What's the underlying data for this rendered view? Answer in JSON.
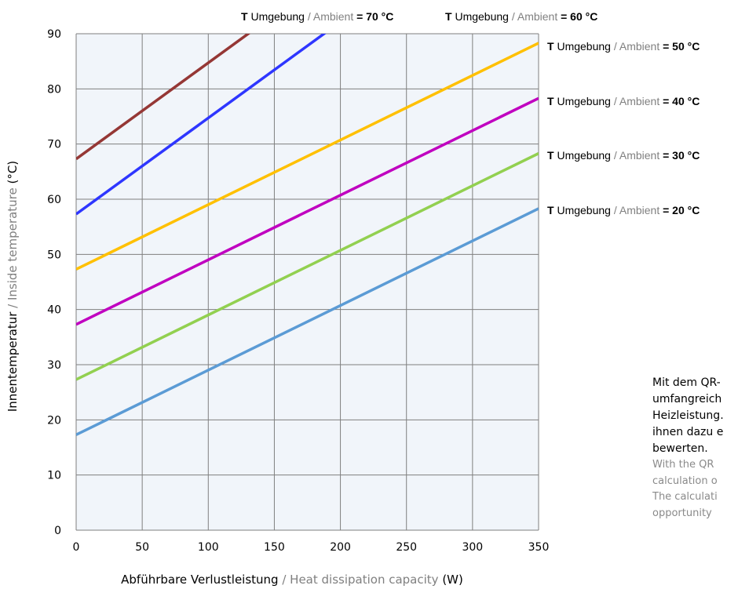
{
  "chart_data": {
    "type": "line",
    "xlabel": {
      "de": "Abführbare Verlustleistung",
      "sep": " / ",
      "en": "Heat dissipation capacity",
      "unit": " (W)"
    },
    "ylabel": {
      "de": "Innentemperatur",
      "sep": " / ",
      "en": "Inside temperature",
      "unit": " (°C)"
    },
    "xlim": [
      0,
      350
    ],
    "ylim": [
      0,
      90
    ],
    "xticks": [
      "0",
      "50",
      "100",
      "150",
      "200",
      "250",
      "300",
      "350"
    ],
    "yticks": [
      "0",
      "10",
      "20",
      "30",
      "40",
      "50",
      "60",
      "70",
      "80",
      "90"
    ],
    "grid": true,
    "label_parts": {
      "t": "T",
      "umgebung": " Umgebung",
      "slash": " / ",
      "ambient": "Ambient"
    },
    "series": [
      {
        "name": "= 70 °C",
        "color": "#953735",
        "x": [
          0,
          350
        ],
        "y": [
          67.3,
          128.3
        ]
      },
      {
        "name": "= 60 °C",
        "color": "#2e36ff",
        "x": [
          0,
          350
        ],
        "y": [
          57.3,
          118.3
        ]
      },
      {
        "name": "= 50 °C",
        "color": "#ffc000",
        "x": [
          0,
          350
        ],
        "y": [
          47.3,
          88.3
        ]
      },
      {
        "name": "= 40 °C",
        "color": "#c000c0",
        "x": [
          0,
          350
        ],
        "y": [
          37.3,
          78.3
        ]
      },
      {
        "name": "= 30 °C",
        "color": "#92d050",
        "x": [
          0,
          350
        ],
        "y": [
          27.3,
          68.3
        ]
      },
      {
        "name": "= 20 °C",
        "color": "#5b9bd5",
        "x": [
          0,
          350
        ],
        "y": [
          17.3,
          58.3
        ]
      }
    ]
  },
  "side_text": {
    "de_lines": [
      "Mit dem QR-",
      "umfangreich",
      "Heizleistung.",
      "ihnen dazu e",
      "bewerten."
    ],
    "en_lines": [
      "With the QR",
      "calculation o",
      "The calculati",
      "opportunity"
    ]
  }
}
